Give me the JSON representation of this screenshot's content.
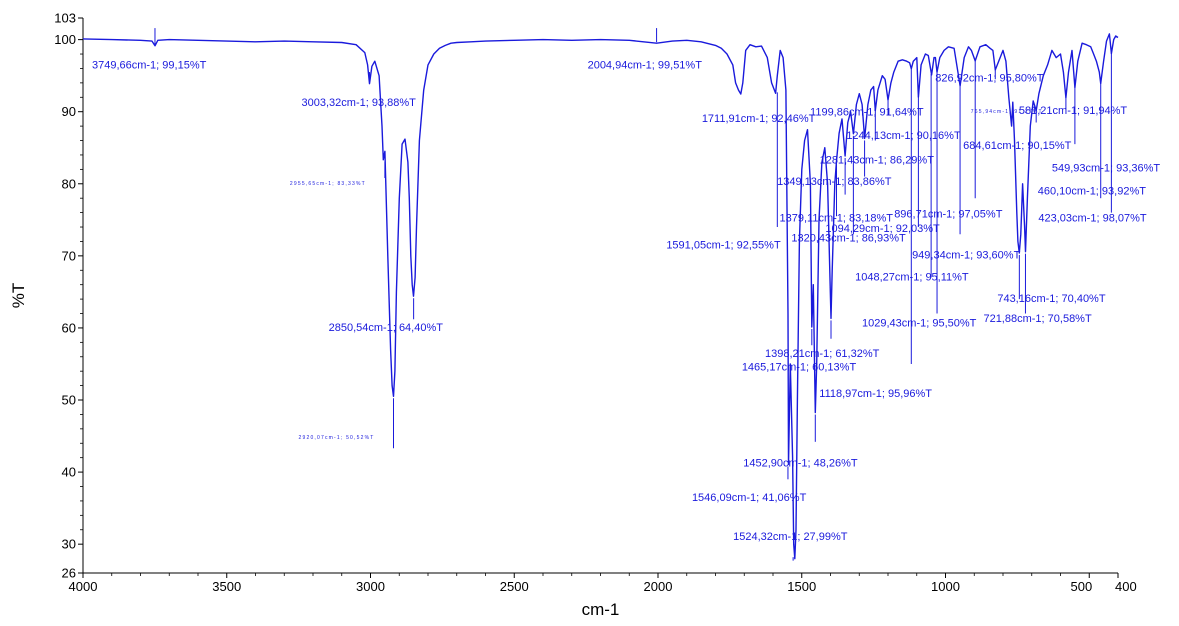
{
  "chart_data": {
    "type": "line",
    "xlabel": "cm-1",
    "ylabel": "%T",
    "xlim": [
      4000,
      400
    ],
    "ylim": [
      26,
      103
    ],
    "x_reversed": true,
    "grid": false,
    "legend": "none",
    "line_color": "#1a1adc",
    "x_ticks": [
      {
        "value": 4000,
        "label": "4000"
      },
      {
        "value": 3500,
        "label": "3500"
      },
      {
        "value": 3000,
        "label": "3000"
      },
      {
        "value": 2500,
        "label": "2500"
      },
      {
        "value": 2000,
        "label": "2000"
      },
      {
        "value": 1500,
        "label": "1500"
      },
      {
        "value": 1000,
        "label": "1000"
      },
      {
        "value": 500,
        "label": "500"
      },
      {
        "value": 400,
        "label": "400"
      }
    ],
    "y_ticks": [
      {
        "value": 103,
        "label": "103"
      },
      {
        "value": 100,
        "label": "100"
      },
      {
        "value": 90,
        "label": "90"
      },
      {
        "value": 80,
        "label": "80"
      },
      {
        "value": 70,
        "label": "70"
      },
      {
        "value": 60,
        "label": "60"
      },
      {
        "value": 50,
        "label": "50"
      },
      {
        "value": 40,
        "label": "40"
      },
      {
        "value": 30,
        "label": "30"
      },
      {
        "value": 26,
        "label": "26"
      }
    ],
    "series": [
      {
        "x": [
          4000,
          3900,
          3800,
          3760,
          3749.66,
          3740,
          3700,
          3600,
          3500,
          3400,
          3300,
          3200,
          3100,
          3050,
          3020,
          3010,
          3003.32,
          2995,
          2985,
          2970,
          2960,
          2955.65,
          2950,
          2940,
          2930,
          2925,
          2920,
          2915,
          2910,
          2900,
          2890,
          2880,
          2870,
          2865,
          2860,
          2855,
          2850.54,
          2845,
          2840,
          2830,
          2815,
          2800,
          2780,
          2760,
          2740,
          2720,
          2700,
          2650,
          2600,
          2500,
          2400,
          2300,
          2200,
          2100,
          2004.94,
          1950,
          1900,
          1850,
          1800,
          1780,
          1760,
          1740,
          1730,
          1720,
          1711.91,
          1705,
          1695,
          1680,
          1660,
          1640,
          1620,
          1605,
          1595,
          1591.05,
          1585,
          1575,
          1565,
          1555,
          1548,
          1546.09,
          1540,
          1532,
          1528,
          1524.32,
          1520,
          1515,
          1508,
          1500,
          1490,
          1480,
          1470,
          1465.17,
          1460,
          1452.9,
          1448,
          1440,
          1430,
          1420,
          1410,
          1400,
          1398.21,
          1394,
          1385,
          1379.11,
          1370,
          1360,
          1349.13,
          1340,
          1330,
          1320.43,
          1310,
          1300,
          1290,
          1281.43,
          1270,
          1260,
          1250,
          1244.13,
          1235,
          1220,
          1210,
          1199.86,
          1190,
          1180,
          1165,
          1150,
          1135,
          1125,
          1118.97,
          1112,
          1100,
          1094.29,
          1085,
          1070,
          1060,
          1048.27,
          1040,
          1035,
          1029.43,
          1020,
          1005,
          990,
          970,
          949.34,
          935,
          920,
          910,
          896.71,
          880,
          860,
          845,
          835,
          826.92,
          815,
          800,
          790,
          780,
          770,
          765.94,
          760,
          752,
          748,
          743.16,
          738,
          732,
          725,
          721.88,
          715,
          705,
          695,
          684.61,
          675,
          660,
          645,
          630,
          615,
          600,
          590,
          581.21,
          572,
          560,
          549.93,
          540,
          525,
          510,
          495,
          485,
          475,
          465,
          460.1,
          450,
          440,
          430,
          423.03,
          415,
          408,
          400
        ],
        "y": [
          100.1,
          100.0,
          99.9,
          99.8,
          99.15,
          99.9,
          100.0,
          99.9,
          99.8,
          99.7,
          99.8,
          99.7,
          99.6,
          99.3,
          98.2,
          96.5,
          93.88,
          96.3,
          97.0,
          95.0,
          88.0,
          83.33,
          84.5,
          70.0,
          57.0,
          52.0,
          50.52,
          54.0,
          65.0,
          78.0,
          85.5,
          86.2,
          83.0,
          78.0,
          70.0,
          66.0,
          64.4,
          67.0,
          74.0,
          86.0,
          93.0,
          96.5,
          98.0,
          98.8,
          99.2,
          99.5,
          99.6,
          99.7,
          99.8,
          99.9,
          100.0,
          99.9,
          100.0,
          99.9,
          99.51,
          99.8,
          99.9,
          99.7,
          99.2,
          98.8,
          98.0,
          96.5,
          94.0,
          93.0,
          92.46,
          94.0,
          98.5,
          99.3,
          99.0,
          99.1,
          97.5,
          94.0,
          93.0,
          92.55,
          95.0,
          98.5,
          97.5,
          93.0,
          62.0,
          41.06,
          55.0,
          42.0,
          30.0,
          27.99,
          32.0,
          50.0,
          72.0,
          82.0,
          86.0,
          87.5,
          80.0,
          60.13,
          66.0,
          48.26,
          55.0,
          75.0,
          83.0,
          85.0,
          80.0,
          64.0,
          61.32,
          68.0,
          80.0,
          83.18,
          87.0,
          89.0,
          83.86,
          88.5,
          90.0,
          86.93,
          91.0,
          92.5,
          91.0,
          86.29,
          91.0,
          93.0,
          93.5,
          90.16,
          93.0,
          95.0,
          94.5,
          91.64,
          94.0,
          95.5,
          97.0,
          97.2,
          97.0,
          96.8,
          95.96,
          97.0,
          97.5,
          92.03,
          96.5,
          98.0,
          97.8,
          95.11,
          97.5,
          97.5,
          95.5,
          97.5,
          98.5,
          99.0,
          98.8,
          93.6,
          97.5,
          99.0,
          98.5,
          97.05,
          99.0,
          99.3,
          98.8,
          98.5,
          95.8,
          97.0,
          98.5,
          97.0,
          92.0,
          88.0,
          91.27,
          86.0,
          76.0,
          72.0,
          70.4,
          73.0,
          80.0,
          74.0,
          70.58,
          78.0,
          88.0,
          91.5,
          90.15,
          92.5,
          95.0,
          96.5,
          98.5,
          97.5,
          98.0,
          95.5,
          91.94,
          95.5,
          98.5,
          93.36,
          97.0,
          99.5,
          99.3,
          99.0,
          98.0,
          97.0,
          95.5,
          93.92,
          97.0,
          99.8,
          100.8,
          98.07,
          100.0,
          100.5,
          100.3
        ]
      }
    ],
    "peak_markers": [
      {
        "x": 3749.66,
        "y": 99.15,
        "label": "3749,66cm-1; 99,15%T"
      },
      {
        "x": 3003.32,
        "y": 93.88,
        "label": "3003,32cm-1; 93,88%T"
      },
      {
        "x": 2955.65,
        "y": 83.33,
        "label": "2955,65cm-1; 83,33%T"
      },
      {
        "x": 2850.54,
        "y": 64.4,
        "label": "2850,54cm-1; 64,40%T"
      },
      {
        "x": 2920.07,
        "y": 50.52,
        "label": "2920,07cm-1; 50,52%T"
      },
      {
        "x": 2004.94,
        "y": 99.51,
        "label": "2004,94cm-1; 99,51%T"
      },
      {
        "x": 1711.91,
        "y": 92.46,
        "label": "1711,91cm-1; 92,46%T"
      },
      {
        "x": 1591.05,
        "y": 92.55,
        "label": "1591,05cm-1; 92,55%T"
      },
      {
        "x": 1546.09,
        "y": 41.06,
        "label": "1546,09cm-1; 41,06%T"
      },
      {
        "x": 1524.32,
        "y": 27.99,
        "label": "1524,32cm-1; 27,99%T"
      },
      {
        "x": 1465.17,
        "y": 60.13,
        "label": "1465,17cm-1; 60,13%T"
      },
      {
        "x": 1452.9,
        "y": 48.26,
        "label": "1452,90cm-1; 48,26%T"
      },
      {
        "x": 1398.21,
        "y": 61.32,
        "label": "1398,21cm-1; 61,32%T"
      },
      {
        "x": 1379.11,
        "y": 83.18,
        "label": "1379,11cm-1; 83,18%T"
      },
      {
        "x": 1349.13,
        "y": 83.86,
        "label": "1349,13cm-1; 83,86%T"
      },
      {
        "x": 1320.43,
        "y": 86.93,
        "label": "1320,43cm-1; 86,93%T"
      },
      {
        "x": 1281.43,
        "y": 86.29,
        "label": "1281,43cm-1; 86,29%T"
      },
      {
        "x": 1244.13,
        "y": 90.16,
        "label": "1244,13cm-1; 90,16%T"
      },
      {
        "x": 1199.86,
        "y": 91.64,
        "label": "1199,86cm-1; 91,64%T"
      },
      {
        "x": 1118.97,
        "y": 95.96,
        "label": "1118,97cm-1; 95,96%T"
      },
      {
        "x": 1094.29,
        "y": 92.03,
        "label": "1094,29cm-1; 92,03%T"
      },
      {
        "x": 1048.27,
        "y": 95.11,
        "label": "1048,27cm-1; 95,11%T"
      },
      {
        "x": 1029.43,
        "y": 95.5,
        "label": "1029,43cm-1; 95,50%T"
      },
      {
        "x": 949.34,
        "y": 93.6,
        "label": "949,34cm-1; 93,60%T"
      },
      {
        "x": 896.71,
        "y": 97.05,
        "label": "896,71cm-1; 97,05%T"
      },
      {
        "x": 826.92,
        "y": 95.8,
        "label": "826,92cm-1; 95,80%T"
      },
      {
        "x": 765.94,
        "y": 91.27,
        "label": "765,94cm-1; 91,27%T"
      },
      {
        "x": 743.16,
        "y": 70.4,
        "label": "743,16cm-1; 70,40%T"
      },
      {
        "x": 721.88,
        "y": 70.58,
        "label": "721,88cm-1; 70,58%T"
      },
      {
        "x": 684.61,
        "y": 90.15,
        "label": "684,61cm-1; 90,15%T"
      },
      {
        "x": 581.21,
        "y": 91.94,
        "label": "581,21cm-1; 91,94%T"
      },
      {
        "x": 549.93,
        "y": 93.36,
        "label": "549,93cm-1; 93,36%T"
      },
      {
        "x": 460.1,
        "y": 93.92,
        "label": "460,10cm-1; 93,92%T"
      },
      {
        "x": 423.03,
        "y": 98.07,
        "label": "423,03cm-1; 98,07%T"
      }
    ]
  }
}
